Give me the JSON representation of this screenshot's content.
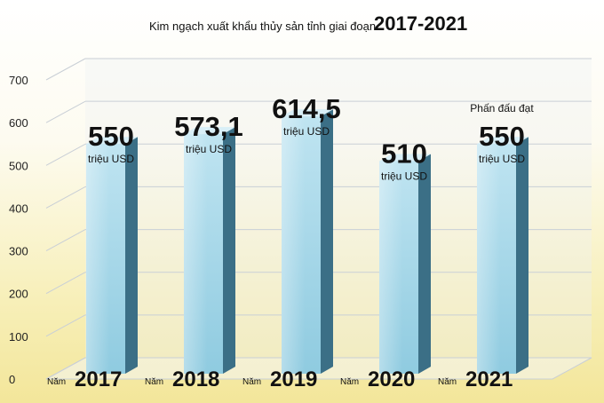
{
  "chart_data": {
    "type": "bar",
    "title": "Kim ngạch xuất khẩu thủy sản tỉnh giai đoạn",
    "title_emphasis": "2017-2021",
    "categories": [
      "2017",
      "2018",
      "2019",
      "2020",
      "2021"
    ],
    "category_prefix": "Năm",
    "values": [
      550,
      573.1,
      614.5,
      510,
      550
    ],
    "value_labels": [
      "550",
      "573,1",
      "614,5",
      "510",
      "550"
    ],
    "unit_label": "triệu USD",
    "annotations": [
      {
        "category": "2021",
        "text": "Phấn đấu đạt"
      }
    ],
    "ylim": [
      0,
      700
    ],
    "yticks": [
      0,
      100,
      200,
      300,
      400,
      500,
      600,
      700
    ],
    "grid": true,
    "legend": "none",
    "colors": {
      "bar_front_top": "#bfe4f1",
      "bar_front_bottom": "#8fcbe0",
      "bar_side": "#3b6f86",
      "grid": "#c9cfd6",
      "back_wall": "#eef2f4"
    }
  }
}
